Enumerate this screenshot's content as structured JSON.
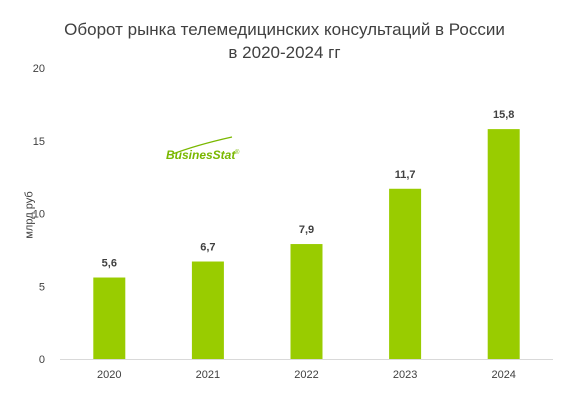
{
  "chart_data": {
    "type": "bar",
    "title": "Оборот рынка телемедицинских консультаций в России",
    "subtitle": "в 2020-2024 гг",
    "ylabel": "млрд руб",
    "xlabel": "",
    "categories": [
      "2020",
      "2021",
      "2022",
      "2023",
      "2024"
    ],
    "values": [
      5.6,
      6.7,
      7.9,
      11.7,
      15.8
    ],
    "value_labels": [
      "5,6",
      "6,7",
      "7,9",
      "11,7",
      "15,8"
    ],
    "yticks": [
      "0",
      "5",
      "10",
      "15",
      "20"
    ],
    "ylim": [
      0,
      20
    ],
    "grid": false,
    "bar_color": "#99cc00"
  },
  "logo": {
    "text": "BusinesStat",
    "color": "#7ab800"
  }
}
